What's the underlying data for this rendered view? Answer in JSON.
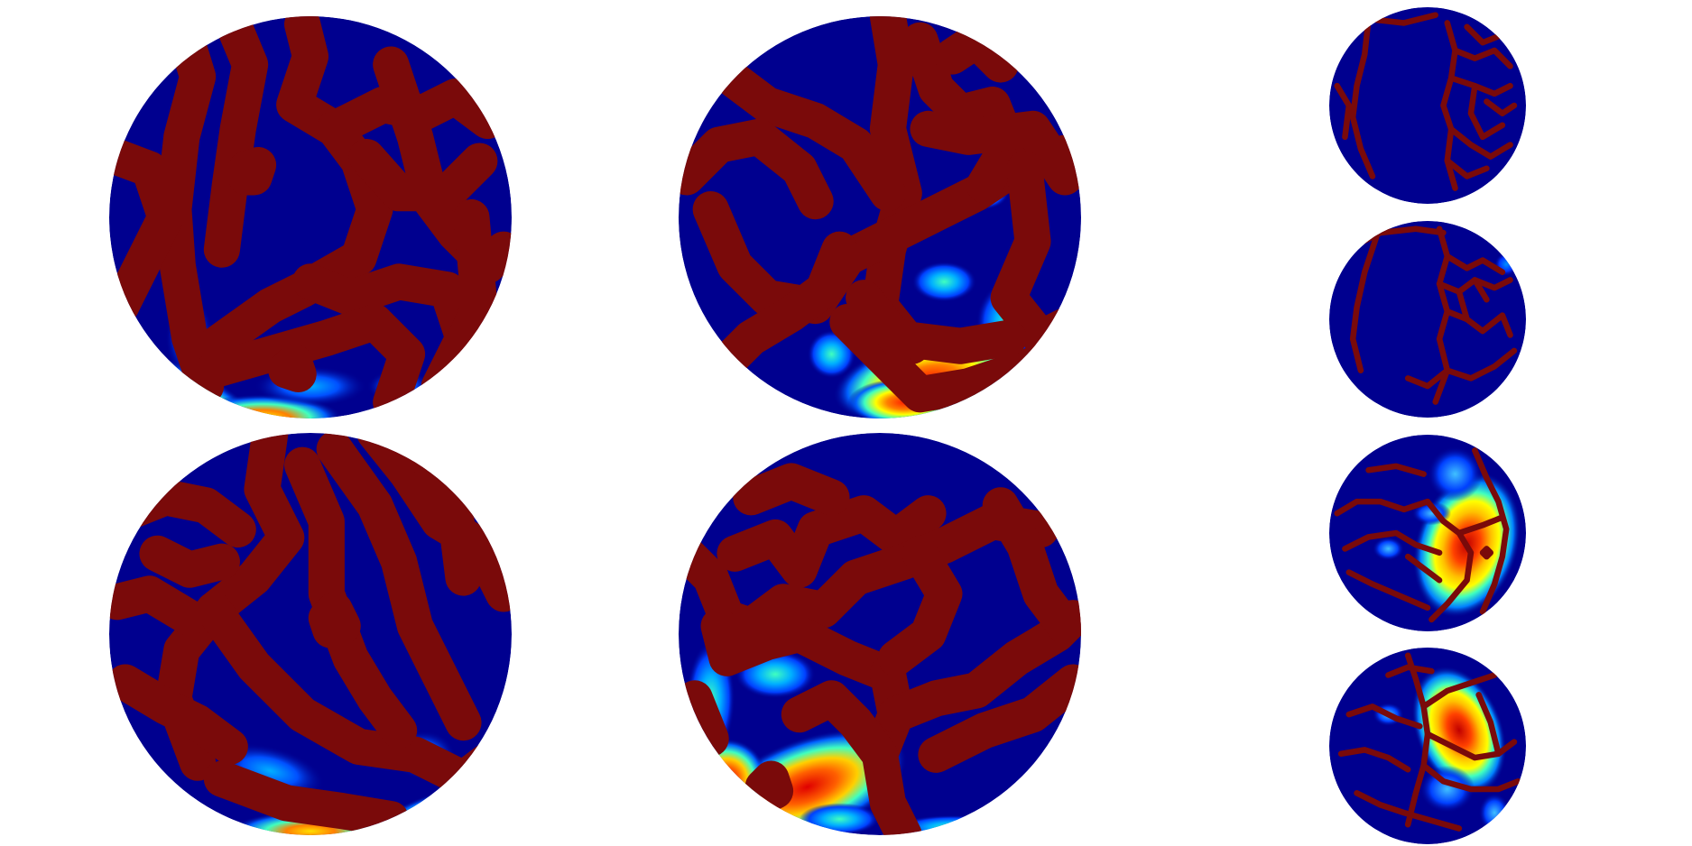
{
  "figure": {
    "background_color": "#ffffff",
    "colormap": "jet",
    "colormap_stops": [
      "#00008f",
      "#0000ff",
      "#00b0ff",
      "#40ffbf",
      "#ffff00",
      "#ff8000",
      "#ff0000",
      "#800000"
    ],
    "sphere_fill_color": "#00008f",
    "boundary_color": "#7a0a0a",
    "panels": [
      {
        "name": "globe-top-left",
        "size": "large",
        "hotspot": "south-west-rim"
      },
      {
        "name": "globe-top-center",
        "size": "large",
        "hotspot": "south"
      },
      {
        "name": "globe-bottom-left",
        "size": "large",
        "hotspot": "south-rim"
      },
      {
        "name": "globe-bottom-center",
        "size": "large",
        "hotspot": "south-west"
      },
      {
        "name": "globe-small-1",
        "size": "small",
        "hotspot": "none"
      },
      {
        "name": "globe-small-2",
        "size": "small",
        "hotspot": "none"
      },
      {
        "name": "globe-small-3",
        "size": "small",
        "hotspot": "east"
      },
      {
        "name": "globe-small-4",
        "size": "small",
        "hotspot": "east"
      }
    ]
  }
}
